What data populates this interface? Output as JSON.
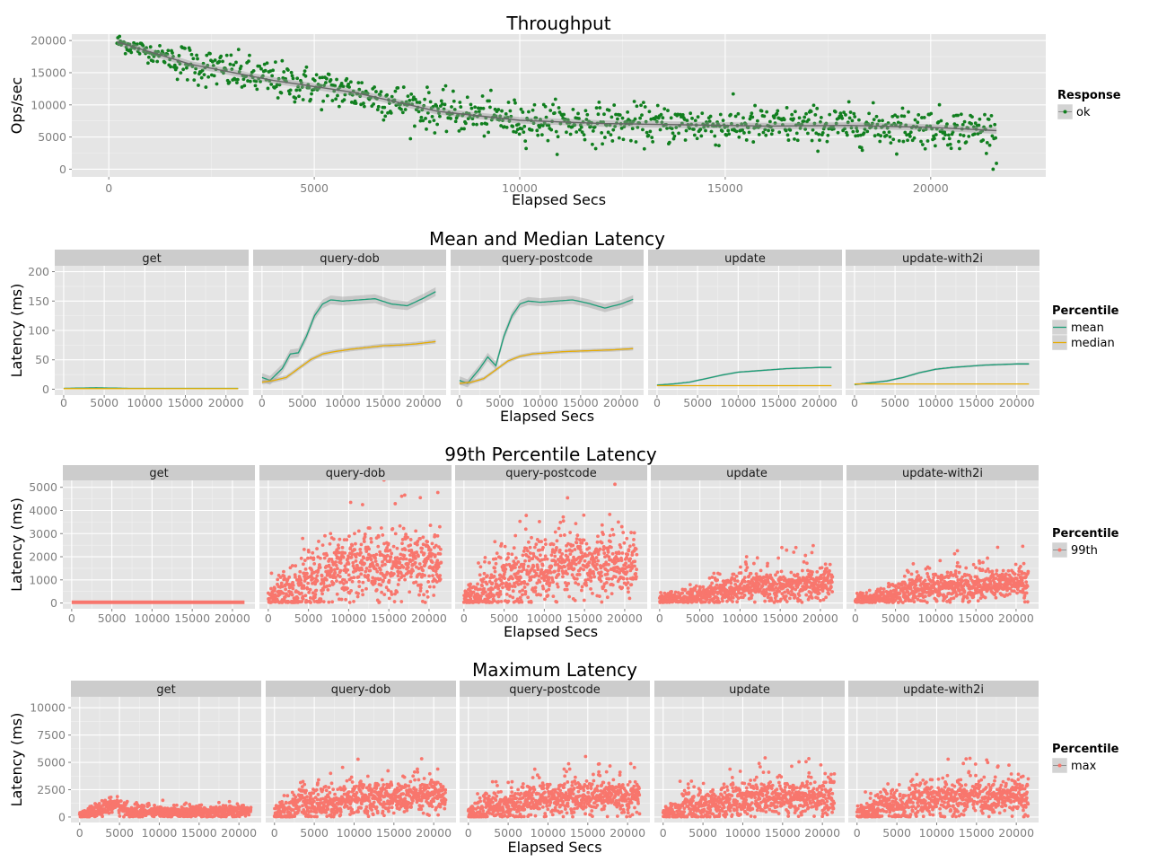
{
  "chart_data": [
    {
      "id": "throughput",
      "type": "scatter",
      "title": "Throughput",
      "xlabel": "Elapsed Secs",
      "ylabel": "Ops/sec",
      "xlim": [
        -900,
        22800
      ],
      "ylim": [
        -1200,
        21000
      ],
      "xticks": [
        0,
        5000,
        10000,
        15000,
        20000
      ],
      "yticks": [
        0,
        5000,
        10000,
        15000,
        20000
      ],
      "legend": {
        "title": "Response",
        "placement": "right",
        "items": [
          {
            "label": "ok",
            "color": "#117f1f"
          }
        ]
      },
      "series": [
        {
          "name": "ok",
          "color": "#117f1f",
          "x_range": [
            200,
            21600
          ],
          "trend": {
            "x": [
              200,
              2000,
              4000,
              6000,
              8000,
              10000,
              12000,
              14000,
              16000,
              18000,
              20000,
              21600
            ],
            "y": [
              19800,
              16300,
              13800,
              11900,
              9000,
              7600,
              7100,
              6900,
              6700,
              6800,
              6500,
              6000
            ]
          },
          "spread": 2000,
          "points_n": 1050
        }
      ],
      "smooth": {
        "color": "#666666",
        "band_color": "#999999"
      }
    },
    {
      "id": "mean_median",
      "type": "line",
      "title": "Mean and Median Latency",
      "xlabel": "Elapsed Secs",
      "ylabel": "Latency (ms)",
      "xlim": [
        -1100,
        22800
      ],
      "ylim": [
        -10,
        210
      ],
      "xticks": [
        0,
        5000,
        10000,
        15000,
        20000
      ],
      "xtick_labels": [
        "0",
        "5000",
        "10000",
        "15000",
        "20000"
      ],
      "yticks": [
        0,
        50,
        100,
        150,
        200
      ],
      "facets": [
        "get",
        "query-dob",
        "query-postcode",
        "update",
        "update-with2i"
      ],
      "legend": {
        "title": "Percentile",
        "placement": "right",
        "items": [
          {
            "label": "mean",
            "color": "#1b9e77"
          },
          {
            "label": "median",
            "color": "#e6ab02"
          }
        ]
      },
      "series": [
        {
          "facet": "get",
          "name": "mean",
          "color": "#1b9e77",
          "x": [
            0,
            4000,
            8000,
            12000,
            16000,
            21500
          ],
          "y": [
            1.5,
            2.5,
            1.5,
            1.5,
            1.5,
            1.5
          ]
        },
        {
          "facet": "get",
          "name": "median",
          "color": "#e6ab02",
          "x": [
            0,
            4000,
            8000,
            12000,
            16000,
            21500
          ],
          "y": [
            1,
            1,
            1,
            1,
            1,
            1
          ]
        },
        {
          "facet": "query-dob",
          "name": "mean",
          "color": "#1b9e77",
          "x": [
            0,
            1000,
            2500,
            3500,
            4500,
            5500,
            6500,
            7500,
            8500,
            10000,
            12000,
            14000,
            16000,
            18000,
            20000,
            21500
          ],
          "y": [
            20,
            15,
            35,
            60,
            62,
            90,
            125,
            145,
            152,
            150,
            152,
            154,
            145,
            142,
            155,
            166
          ]
        },
        {
          "facet": "query-dob",
          "name": "median",
          "color": "#e6ab02",
          "x": [
            0,
            1500,
            3000,
            4500,
            6000,
            7500,
            9000,
            11000,
            13000,
            15000,
            17000,
            19000,
            21500
          ],
          "y": [
            12,
            15,
            20,
            35,
            50,
            60,
            64,
            68,
            71,
            74,
            75,
            77,
            81
          ]
        },
        {
          "facet": "query-postcode",
          "name": "mean",
          "color": "#1b9e77",
          "x": [
            0,
            1000,
            2500,
            3500,
            4500,
            5500,
            6500,
            7500,
            8500,
            10000,
            12000,
            14000,
            16000,
            18000,
            20000,
            21500
          ],
          "y": [
            15,
            10,
            35,
            55,
            40,
            90,
            125,
            145,
            150,
            148,
            150,
            152,
            146,
            138,
            145,
            153
          ]
        },
        {
          "facet": "query-postcode",
          "name": "median",
          "color": "#e6ab02",
          "x": [
            0,
            1500,
            3000,
            4500,
            6000,
            7500,
            9000,
            11000,
            13000,
            15000,
            17000,
            19000,
            21500
          ],
          "y": [
            10,
            12,
            18,
            33,
            48,
            56,
            60,
            62,
            64,
            65,
            66,
            67,
            69
          ]
        },
        {
          "facet": "update",
          "name": "mean",
          "color": "#1b9e77",
          "x": [
            0,
            2000,
            4000,
            6000,
            8000,
            10000,
            12000,
            14000,
            16000,
            18000,
            20000,
            21500
          ],
          "y": [
            7,
            9,
            12,
            18,
            24,
            29,
            31,
            33,
            35,
            36,
            37,
            37
          ]
        },
        {
          "facet": "update",
          "name": "median",
          "color": "#e6ab02",
          "x": [
            0,
            4000,
            8000,
            12000,
            16000,
            21500
          ],
          "y": [
            6,
            6,
            6,
            6,
            6,
            6
          ]
        },
        {
          "facet": "update-with2i",
          "name": "mean",
          "color": "#1b9e77",
          "x": [
            0,
            2000,
            4000,
            6000,
            8000,
            10000,
            12000,
            14000,
            16000,
            18000,
            20000,
            21500
          ],
          "y": [
            8,
            11,
            14,
            20,
            28,
            34,
            37,
            39,
            41,
            42,
            43,
            43
          ]
        },
        {
          "facet": "update-with2i",
          "name": "median",
          "color": "#e6ab02",
          "x": [
            0,
            4000,
            8000,
            12000,
            16000,
            21500
          ],
          "y": [
            9,
            9,
            9,
            9,
            9,
            9
          ]
        }
      ]
    },
    {
      "id": "p99",
      "type": "scatter",
      "title": "99th Percentile Latency",
      "xlabel": "Elapsed Secs",
      "ylabel": "Latency (ms)",
      "xlim": [
        -1100,
        22800
      ],
      "ylim": [
        -250,
        5300
      ],
      "xticks": [
        0,
        5000,
        10000,
        15000,
        20000
      ],
      "xtick_labels": [
        "0",
        "5000",
        "10000",
        "15000",
        "20000"
      ],
      "yticks": [
        0,
        1000,
        2000,
        3000,
        4000,
        5000
      ],
      "facets": [
        "get",
        "query-dob",
        "query-postcode",
        "update",
        "update-with2i"
      ],
      "legend": {
        "title": "Percentile",
        "placement": "right",
        "items": [
          {
            "label": "99th",
            "color": "#f8766d"
          }
        ]
      },
      "series": [
        {
          "facet": "get",
          "name": "99th",
          "color": "#f8766d",
          "x": [
            0,
            21500
          ],
          "y": [
            30,
            30
          ],
          "spread": 20,
          "points_n": 1
        },
        {
          "facet": "query-dob",
          "name": "99th",
          "color": "#f8766d",
          "x": [
            0,
            2000,
            3500,
            4500,
            6000,
            8000,
            11000,
            14000,
            17000,
            20000,
            21500
          ],
          "y": [
            150,
            300,
            700,
            900,
            1100,
            1400,
            1600,
            1700,
            1650,
            1800,
            1900
          ],
          "spread": 700,
          "points_n": 800
        },
        {
          "facet": "query-postcode",
          "name": "99th",
          "color": "#f8766d",
          "x": [
            0,
            2000,
            3500,
            4500,
            6000,
            8000,
            11000,
            14000,
            17000,
            20000,
            21500
          ],
          "y": [
            150,
            300,
            700,
            850,
            1000,
            1300,
            1500,
            1600,
            1600,
            1800,
            1900
          ],
          "spread": 700,
          "points_n": 800
        },
        {
          "facet": "update",
          "name": "99th",
          "color": "#f8766d",
          "x": [
            0,
            3000,
            6000,
            9000,
            12000,
            15000,
            18000,
            21500
          ],
          "y": [
            80,
            220,
            400,
            600,
            700,
            750,
            800,
            850
          ],
          "spread": 350,
          "points_n": 800
        },
        {
          "facet": "update-with2i",
          "name": "99th",
          "color": "#f8766d",
          "x": [
            0,
            3000,
            6000,
            9000,
            12000,
            15000,
            18000,
            21500
          ],
          "y": [
            80,
            250,
            450,
            650,
            750,
            800,
            850,
            900
          ],
          "spread": 350,
          "points_n": 800
        }
      ]
    },
    {
      "id": "max",
      "type": "scatter",
      "title": "Maximum Latency",
      "xlabel": "Elapsed Secs",
      "ylabel": "Latency (ms)",
      "xlim": [
        -1100,
        22800
      ],
      "ylim": [
        -500,
        11000
      ],
      "xticks": [
        0,
        5000,
        10000,
        15000,
        20000
      ],
      "xtick_labels": [
        "0",
        "5000",
        "10000",
        "15000",
        "20000"
      ],
      "yticks": [
        0,
        2500,
        5000,
        7500,
        10000
      ],
      "facets": [
        "get",
        "query-dob",
        "query-postcode",
        "update",
        "update-with2i"
      ],
      "legend": {
        "title": "Percentile",
        "placement": "right",
        "items": [
          {
            "label": "max",
            "color": "#f8766d"
          }
        ]
      },
      "series": [
        {
          "facet": "get",
          "name": "max",
          "color": "#f8766d",
          "x": [
            0,
            2000,
            3500,
            4500,
            6000,
            10000,
            15000,
            21500
          ],
          "y": [
            250,
            400,
            900,
            1200,
            450,
            400,
            450,
            500
          ],
          "spread": 350,
          "points_n": 800
        },
        {
          "facet": "query-dob",
          "name": "max",
          "color": "#f8766d",
          "x": [
            0,
            2000,
            3500,
            4500,
            6000,
            9000,
            13000,
            17000,
            21500
          ],
          "y": [
            300,
            600,
            1500,
            1000,
            1200,
            1700,
            1800,
            1800,
            1900
          ],
          "spread": 800,
          "points_n": 800
        },
        {
          "facet": "query-postcode",
          "name": "max",
          "color": "#f8766d",
          "x": [
            0,
            2000,
            3500,
            4500,
            6000,
            9000,
            13000,
            17000,
            21500
          ],
          "y": [
            300,
            600,
            1500,
            1000,
            1200,
            1700,
            1800,
            1800,
            1900
          ],
          "spread": 800,
          "points_n": 800
        },
        {
          "facet": "update",
          "name": "max",
          "color": "#f8766d",
          "x": [
            0,
            2000,
            3500,
            4500,
            6000,
            9000,
            13000,
            17000,
            21500
          ],
          "y": [
            250,
            500,
            1400,
            900,
            1100,
            1600,
            1700,
            1800,
            1800
          ],
          "spread": 800,
          "points_n": 800
        },
        {
          "facet": "update-with2i",
          "name": "max",
          "color": "#f8766d",
          "x": [
            0,
            2000,
            3500,
            4500,
            6000,
            9000,
            13000,
            17000,
            21500
          ],
          "y": [
            250,
            500,
            1400,
            900,
            1100,
            1600,
            1800,
            1800,
            1900
          ],
          "spread": 800,
          "points_n": 800
        }
      ]
    }
  ]
}
